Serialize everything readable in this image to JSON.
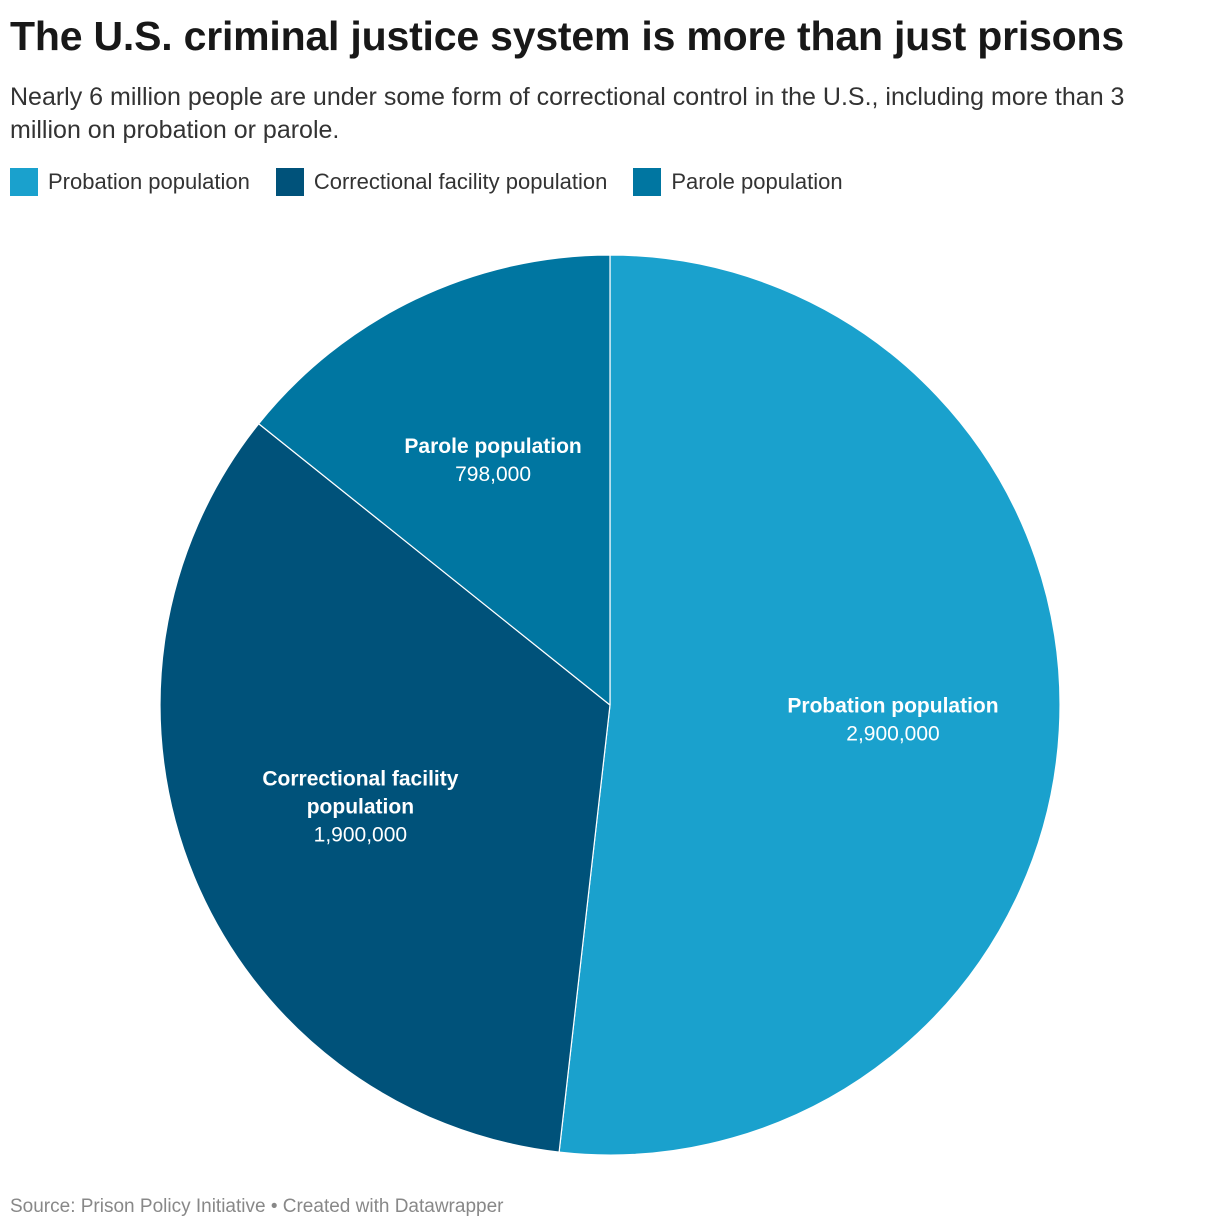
{
  "title": "The U.S. criminal justice system is more than just prisons",
  "subtitle": "Nearly 6 million people are under some form of correctional control in the U.S., including more than 3 million on probation or parole.",
  "source": "Source: Prison Policy Initiative • Created with Datawrapper",
  "chart_data": {
    "type": "pie",
    "title": "The U.S. criminal justice system is more than just prisons",
    "legend": "top-left",
    "slices": [
      {
        "name": "Probation population",
        "value": 2900000,
        "value_label": "2,900,000",
        "color": "#1aa1cd",
        "label_lines": [
          "Probation population"
        ]
      },
      {
        "name": "Correctional facility population",
        "value": 1900000,
        "value_label": "1,900,000",
        "color": "#00527a",
        "label_lines": [
          "Correctional facility",
          "population"
        ]
      },
      {
        "name": "Parole population",
        "value": 798000,
        "value_label": "798,000",
        "color": "#0076a1",
        "label_lines": [
          "Parole population"
        ]
      }
    ]
  }
}
